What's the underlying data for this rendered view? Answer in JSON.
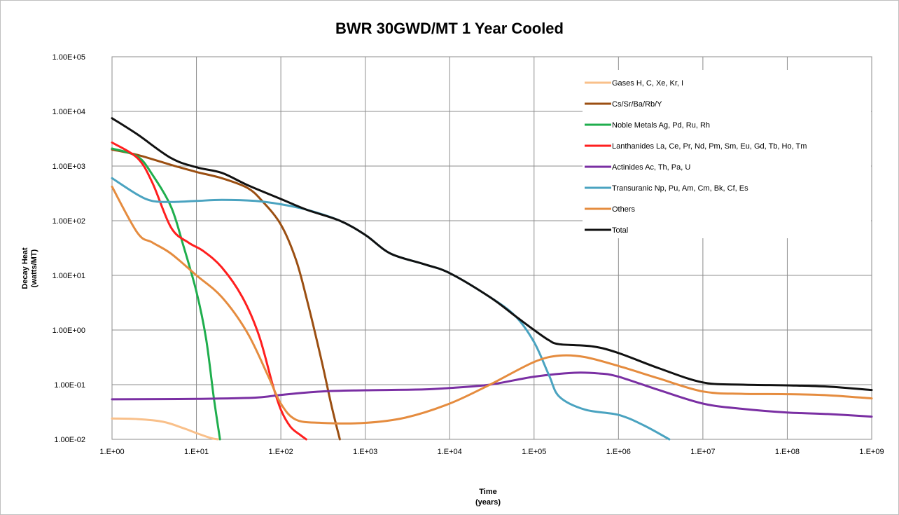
{
  "chart_data": {
    "type": "line",
    "title": "BWR 30GWD/MT 1 Year Cooled",
    "xlabel": [
      "Time",
      "(years)"
    ],
    "ylabel": [
      "Decay Heat",
      "(watts/MT)"
    ],
    "x_scale": "log",
    "y_scale": "log",
    "xlim": [
      1,
      1000000000
    ],
    "ylim": [
      0.01,
      100000
    ],
    "grid": true,
    "legend_position": "top-right",
    "x_ticks": [
      {
        "value": 1,
        "label": "1.E+00"
      },
      {
        "value": 10,
        "label": "1.E+01"
      },
      {
        "value": 100,
        "label": "1.E+02"
      },
      {
        "value": 1000,
        "label": "1.E+03"
      },
      {
        "value": 10000,
        "label": "1.E+04"
      },
      {
        "value": 100000,
        "label": "1.E+05"
      },
      {
        "value": 1000000,
        "label": "1.E+06"
      },
      {
        "value": 10000000,
        "label": "1.E+07"
      },
      {
        "value": 100000000,
        "label": "1.E+08"
      },
      {
        "value": 1000000000,
        "label": "1.E+09"
      }
    ],
    "y_ticks": [
      {
        "value": 0.01,
        "label": "1.00E-02"
      },
      {
        "value": 0.1,
        "label": "1.00E-01"
      },
      {
        "value": 1,
        "label": "1.00E+00"
      },
      {
        "value": 10,
        "label": "1.00E+01"
      },
      {
        "value": 100,
        "label": "1.00E+02"
      },
      {
        "value": 1000,
        "label": "1.00E+03"
      },
      {
        "value": 10000,
        "label": "1.00E+04"
      },
      {
        "value": 100000,
        "label": "1.00E+05"
      }
    ],
    "series": [
      {
        "name": "Gases H, C, Xe, Kr, I",
        "color": "#f9c08a",
        "points": [
          [
            1,
            0.024
          ],
          [
            2,
            0.0235
          ],
          [
            4,
            0.021
          ],
          [
            7,
            0.016
          ],
          [
            10,
            0.013
          ],
          [
            15,
            0.0105
          ],
          [
            18,
            0.01
          ]
        ]
      },
      {
        "name": "Cs/Sr/Ba/Rb/Y",
        "color": "#9b4f12",
        "points": [
          [
            1,
            2000
          ],
          [
            2,
            1600
          ],
          [
            5,
            1050
          ],
          [
            10,
            780
          ],
          [
            20,
            600
          ],
          [
            40,
            400
          ],
          [
            60,
            230
          ],
          [
            100,
            85
          ],
          [
            150,
            20
          ],
          [
            200,
            4
          ],
          [
            300,
            0.3
          ],
          [
            400,
            0.04
          ],
          [
            500,
            0.01
          ]
        ]
      },
      {
        "name": "Noble Metals  Ag, Pd, Ru, Rh",
        "color": "#1fae4d",
        "points": [
          [
            1,
            2100
          ],
          [
            2,
            1500
          ],
          [
            3,
            700
          ],
          [
            5,
            180
          ],
          [
            7,
            35
          ],
          [
            10,
            5
          ],
          [
            13,
            0.7
          ],
          [
            16,
            0.06
          ],
          [
            19,
            0.01
          ]
        ]
      },
      {
        "name": "Lanthanides La, Ce, Pr, Nd, Pm, Sm, Eu, Gd, Tb, Ho, Tm",
        "color": "#ff1f1f",
        "points": [
          [
            1,
            2700
          ],
          [
            2,
            1400
          ],
          [
            3,
            500
          ],
          [
            5,
            75
          ],
          [
            8,
            40
          ],
          [
            12,
            28
          ],
          [
            20,
            14
          ],
          [
            35,
            4
          ],
          [
            55,
            0.8
          ],
          [
            80,
            0.1
          ],
          [
            100,
            0.035
          ],
          [
            130,
            0.017
          ],
          [
            170,
            0.012
          ],
          [
            200,
            0.01
          ]
        ]
      },
      {
        "name": "Actinides Ac, Th, Pa, U",
        "color": "#7a2fa3",
        "points": [
          [
            1,
            0.054
          ],
          [
            10,
            0.055
          ],
          [
            50,
            0.058
          ],
          [
            100,
            0.065
          ],
          [
            300,
            0.075
          ],
          [
            1000,
            0.079
          ],
          [
            5000,
            0.082
          ],
          [
            10000,
            0.087
          ],
          [
            30000,
            0.1
          ],
          [
            100000,
            0.14
          ],
          [
            300000,
            0.165
          ],
          [
            600000,
            0.16
          ],
          [
            1000000,
            0.14
          ],
          [
            3000000,
            0.08
          ],
          [
            10000000,
            0.045
          ],
          [
            30000000,
            0.036
          ],
          [
            100000000,
            0.031
          ],
          [
            300000000,
            0.029
          ],
          [
            1000000000,
            0.026
          ]
        ]
      },
      {
        "name": "Transuranic Np, Pu, Am, Cm,  Bk, Cf, Es",
        "color": "#4aa3c0",
        "points": [
          [
            1,
            600
          ],
          [
            2,
            300
          ],
          [
            3,
            230
          ],
          [
            5,
            220
          ],
          [
            10,
            230
          ],
          [
            20,
            240
          ],
          [
            50,
            230
          ],
          [
            100,
            200
          ],
          [
            200,
            160
          ],
          [
            500,
            100
          ],
          [
            1000,
            55
          ],
          [
            2000,
            25
          ],
          [
            5000,
            16
          ],
          [
            10000,
            11
          ],
          [
            30000,
            4
          ],
          [
            60000,
            1.8
          ],
          [
            100000,
            0.6
          ],
          [
            150000,
            0.15
          ],
          [
            200000,
            0.06
          ],
          [
            400000,
            0.035
          ],
          [
            1000000,
            0.028
          ],
          [
            2000000,
            0.018
          ],
          [
            4000000,
            0.01
          ]
        ]
      },
      {
        "name": "Others",
        "color": "#e58c3f",
        "points": [
          [
            1,
            420
          ],
          [
            2,
            60
          ],
          [
            3,
            40
          ],
          [
            5,
            25
          ],
          [
            10,
            10
          ],
          [
            20,
            4
          ],
          [
            40,
            0.9
          ],
          [
            70,
            0.15
          ],
          [
            100,
            0.045
          ],
          [
            150,
            0.023
          ],
          [
            300,
            0.02
          ],
          [
            1000,
            0.02
          ],
          [
            3000,
            0.025
          ],
          [
            10000,
            0.045
          ],
          [
            30000,
            0.1
          ],
          [
            100000,
            0.26
          ],
          [
            200000,
            0.34
          ],
          [
            400000,
            0.32
          ],
          [
            1000000,
            0.22
          ],
          [
            3000000,
            0.13
          ],
          [
            10000000,
            0.075
          ],
          [
            30000000,
            0.068
          ],
          [
            100000000,
            0.067
          ],
          [
            300000000,
            0.064
          ],
          [
            1000000000,
            0.056
          ]
        ]
      },
      {
        "name": "Total",
        "color": "#111111",
        "points": [
          [
            1,
            7500
          ],
          [
            2,
            3800
          ],
          [
            5,
            1400
          ],
          [
            10,
            950
          ],
          [
            20,
            750
          ],
          [
            40,
            450
          ],
          [
            100,
            250
          ],
          [
            200,
            160
          ],
          [
            500,
            100
          ],
          [
            1000,
            55
          ],
          [
            2000,
            25
          ],
          [
            5000,
            16
          ],
          [
            10000,
            11
          ],
          [
            30000,
            4
          ],
          [
            60000,
            1.8
          ],
          [
            100000,
            1
          ],
          [
            150000,
            0.65
          ],
          [
            200000,
            0.55
          ],
          [
            500000,
            0.5
          ],
          [
            1000000,
            0.38
          ],
          [
            3000000,
            0.2
          ],
          [
            10000000,
            0.11
          ],
          [
            30000000,
            0.1
          ],
          [
            100000000,
            0.097
          ],
          [
            300000000,
            0.092
          ],
          [
            1000000000,
            0.08
          ]
        ]
      }
    ]
  }
}
